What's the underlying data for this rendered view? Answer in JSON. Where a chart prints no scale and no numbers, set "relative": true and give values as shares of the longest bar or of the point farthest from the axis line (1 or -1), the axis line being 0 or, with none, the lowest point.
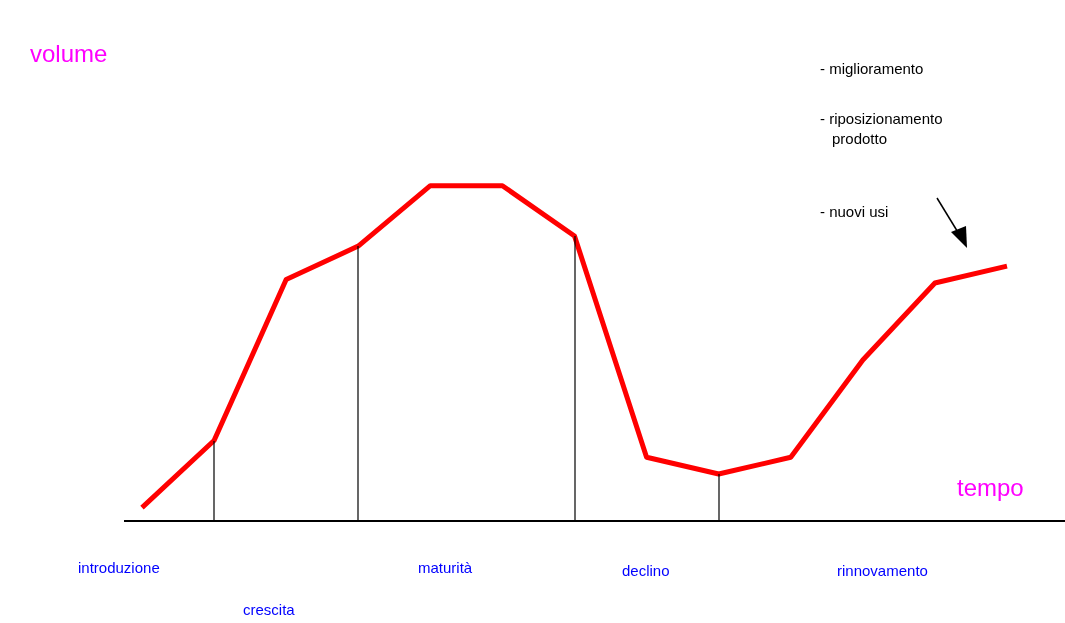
{
  "chart_data": {
    "type": "line",
    "relative": true,
    "xlabel": "tempo",
    "ylabel": "volume",
    "categories": [
      null,
      null,
      null,
      null,
      null,
      null,
      null,
      null,
      null,
      null,
      null,
      null,
      null
    ],
    "series": [
      {
        "color": "#ff0000",
        "values": [
          0.04,
          0.24,
          0.72,
          0.82,
          1,
          1,
          0.85,
          0.19,
          0.14,
          0.19,
          0.48,
          0.71,
          0.76
        ]
      }
    ],
    "annotations": [
      "introduzione",
      "crescita",
      "maturità",
      "declino",
      "rinnovamento",
      "- miglioramento",
      "- riposizionamento\nprodotto",
      "- nuovi usi"
    ],
    "grid": false,
    "legend": false,
    "marker": "none",
    "line_style": "solid"
  }
}
